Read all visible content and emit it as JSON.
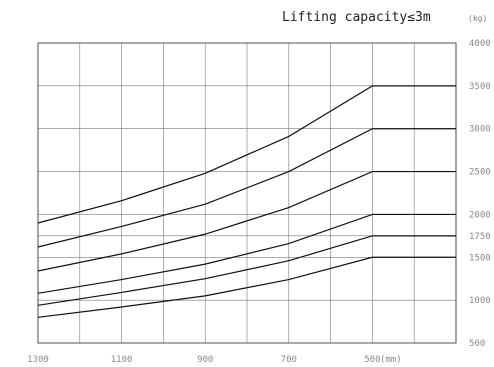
{
  "chart_data": {
    "type": "line",
    "title": "Lifting capacity≤3m",
    "y_unit": "(kg)",
    "x_unit": "(mm)",
    "x_direction": "descending",
    "xlim": [
      1300,
      300
    ],
    "ylim": [
      500,
      4000
    ],
    "x_tick_labels": [
      "1300",
      "1100",
      "900",
      "700",
      "500"
    ],
    "x_tick_values": [
      1300,
      1100,
      900,
      700,
      500
    ],
    "x_grid": [
      1300,
      1200,
      1100,
      1000,
      900,
      800,
      700,
      600,
      500,
      400,
      300
    ],
    "y_tick_labels": [
      "4000",
      "3500",
      "3000",
      "2500",
      "2000",
      "1750",
      "1500",
      "1000",
      "500"
    ],
    "y_tick_values": [
      4000,
      3500,
      3000,
      2500,
      2000,
      1750,
      1500,
      1000,
      500
    ],
    "grid": true,
    "legend": "none",
    "series": [
      {
        "rated": 3500,
        "points": [
          [
            1300,
            1900
          ],
          [
            1100,
            2160
          ],
          [
            900,
            2480
          ],
          [
            700,
            2910
          ],
          [
            500,
            3500
          ],
          [
            300,
            3500
          ]
        ]
      },
      {
        "rated": 3000,
        "points": [
          [
            1300,
            1620
          ],
          [
            1100,
            1860
          ],
          [
            900,
            2120
          ],
          [
            700,
            2500
          ],
          [
            500,
            3000
          ],
          [
            300,
            3000
          ]
        ]
      },
      {
        "rated": 2500,
        "points": [
          [
            1300,
            1340
          ],
          [
            1100,
            1540
          ],
          [
            900,
            1770
          ],
          [
            700,
            2080
          ],
          [
            500,
            2500
          ],
          [
            300,
            2500
          ]
        ]
      },
      {
        "rated": 2000,
        "points": [
          [
            1300,
            1080
          ],
          [
            1100,
            1240
          ],
          [
            900,
            1420
          ],
          [
            700,
            1660
          ],
          [
            500,
            2000
          ],
          [
            300,
            2000
          ]
        ]
      },
      {
        "rated": 1750,
        "points": [
          [
            1300,
            940
          ],
          [
            1100,
            1090
          ],
          [
            900,
            1250
          ],
          [
            700,
            1460
          ],
          [
            500,
            1750
          ],
          [
            300,
            1750
          ]
        ]
      },
      {
        "rated": 1500,
        "points": [
          [
            1300,
            800
          ],
          [
            1100,
            920
          ],
          [
            900,
            1050
          ],
          [
            700,
            1240
          ],
          [
            500,
            1500
          ],
          [
            300,
            1500
          ]
        ]
      }
    ]
  }
}
